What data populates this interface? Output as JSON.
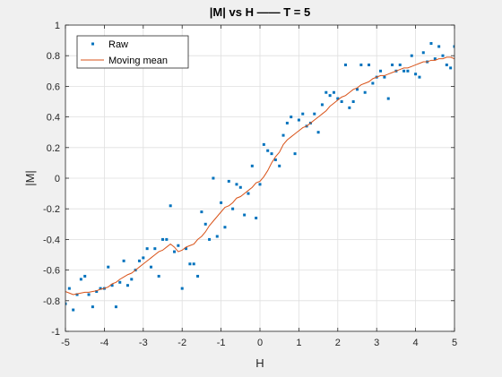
{
  "chart_data": {
    "type": "scatter",
    "title": "|M| vs H —— T = 5",
    "xlabel": "H",
    "ylabel": "|M|",
    "xlim": [
      -5,
      5
    ],
    "ylim": [
      -1,
      1
    ],
    "x_ticks": [
      "-5",
      "-4",
      "-3",
      "-2",
      "-1",
      "0",
      "1",
      "2",
      "3",
      "4",
      "5"
    ],
    "y_ticks": [
      "-1",
      "-0.8",
      "-0.6",
      "-0.4",
      "-0.2",
      "0",
      "0.2",
      "0.4",
      "0.6",
      "0.8",
      "1"
    ],
    "grid": true,
    "legend_position": "top-left",
    "colors": {
      "raw": "#0072bd",
      "moving_mean": "#d95319"
    },
    "series": [
      {
        "name": "Raw",
        "style": "markers",
        "points": [
          [
            -5.0,
            -0.82
          ],
          [
            -4.9,
            -0.72
          ],
          [
            -4.8,
            -0.86
          ],
          [
            -4.7,
            -0.76
          ],
          [
            -4.6,
            -0.66
          ],
          [
            -4.5,
            -0.64
          ],
          [
            -4.4,
            -0.76
          ],
          [
            -4.3,
            -0.84
          ],
          [
            -4.2,
            -0.74
          ],
          [
            -4.1,
            -0.72
          ],
          [
            -4.0,
            -0.72
          ],
          [
            -3.9,
            -0.58
          ],
          [
            -3.8,
            -0.7
          ],
          [
            -3.7,
            -0.84
          ],
          [
            -3.6,
            -0.68
          ],
          [
            -3.5,
            -0.54
          ],
          [
            -3.4,
            -0.7
          ],
          [
            -3.3,
            -0.66
          ],
          [
            -3.2,
            -0.6
          ],
          [
            -3.1,
            -0.54
          ],
          [
            -3.0,
            -0.52
          ],
          [
            -2.9,
            -0.46
          ],
          [
            -2.8,
            -0.58
          ],
          [
            -2.7,
            -0.46
          ],
          [
            -2.6,
            -0.64
          ],
          [
            -2.5,
            -0.4
          ],
          [
            -2.4,
            -0.4
          ],
          [
            -2.3,
            -0.18
          ],
          [
            -2.2,
            -0.48
          ],
          [
            -2.1,
            -0.44
          ],
          [
            -2.0,
            -0.72
          ],
          [
            -1.9,
            -0.46
          ],
          [
            -1.8,
            -0.56
          ],
          [
            -1.7,
            -0.56
          ],
          [
            -1.6,
            -0.64
          ],
          [
            -1.5,
            -0.22
          ],
          [
            -1.4,
            -0.3
          ],
          [
            -1.3,
            -0.4
          ],
          [
            -1.2,
            0.0
          ],
          [
            -1.1,
            -0.38
          ],
          [
            -1.0,
            -0.16
          ],
          [
            -0.9,
            -0.32
          ],
          [
            -0.8,
            -0.02
          ],
          [
            -0.7,
            -0.2
          ],
          [
            -0.6,
            -0.04
          ],
          [
            -0.5,
            -0.06
          ],
          [
            -0.4,
            -0.24
          ],
          [
            -0.3,
            -0.1
          ],
          [
            -0.2,
            0.08
          ],
          [
            -0.1,
            -0.26
          ],
          [
            0.0,
            -0.04
          ],
          [
            0.1,
            0.22
          ],
          [
            0.2,
            0.18
          ],
          [
            0.3,
            0.16
          ],
          [
            0.4,
            0.12
          ],
          [
            0.5,
            0.08
          ],
          [
            0.6,
            0.28
          ],
          [
            0.7,
            0.36
          ],
          [
            0.8,
            0.4
          ],
          [
            0.9,
            0.16
          ],
          [
            1.0,
            0.38
          ],
          [
            1.1,
            0.42
          ],
          [
            1.2,
            0.34
          ],
          [
            1.3,
            0.36
          ],
          [
            1.4,
            0.42
          ],
          [
            1.5,
            0.3
          ],
          [
            1.6,
            0.48
          ],
          [
            1.7,
            0.56
          ],
          [
            1.8,
            0.54
          ],
          [
            1.9,
            0.56
          ],
          [
            2.0,
            0.52
          ],
          [
            2.1,
            0.5
          ],
          [
            2.2,
            0.74
          ],
          [
            2.3,
            0.46
          ],
          [
            2.4,
            0.5
          ],
          [
            2.5,
            0.58
          ],
          [
            2.6,
            0.74
          ],
          [
            2.7,
            0.56
          ],
          [
            2.8,
            0.74
          ],
          [
            2.9,
            0.62
          ],
          [
            3.0,
            0.66
          ],
          [
            3.1,
            0.7
          ],
          [
            3.2,
            0.66
          ],
          [
            3.3,
            0.52
          ],
          [
            3.4,
            0.74
          ],
          [
            3.5,
            0.7
          ],
          [
            3.6,
            0.74
          ],
          [
            3.7,
            0.7
          ],
          [
            3.8,
            0.7
          ],
          [
            3.9,
            0.8
          ],
          [
            4.0,
            0.68
          ],
          [
            4.1,
            0.66
          ],
          [
            4.2,
            0.82
          ],
          [
            4.3,
            0.76
          ],
          [
            4.4,
            0.88
          ],
          [
            4.5,
            0.78
          ],
          [
            4.6,
            0.86
          ],
          [
            4.7,
            0.8
          ],
          [
            4.8,
            0.74
          ],
          [
            4.9,
            0.72
          ],
          [
            5.0,
            0.86
          ]
        ]
      },
      {
        "name": "Moving mean",
        "style": "line",
        "points": [
          [
            -5.0,
            -0.74
          ],
          [
            -4.9,
            -0.75
          ],
          [
            -4.8,
            -0.76
          ],
          [
            -4.7,
            -0.755
          ],
          [
            -4.6,
            -0.75
          ],
          [
            -4.5,
            -0.745
          ],
          [
            -4.4,
            -0.745
          ],
          [
            -4.3,
            -0.74
          ],
          [
            -4.2,
            -0.735
          ],
          [
            -4.1,
            -0.725
          ],
          [
            -4.0,
            -0.72
          ],
          [
            -3.9,
            -0.71
          ],
          [
            -3.8,
            -0.69
          ],
          [
            -3.7,
            -0.68
          ],
          [
            -3.6,
            -0.66
          ],
          [
            -3.5,
            -0.645
          ],
          [
            -3.4,
            -0.63
          ],
          [
            -3.3,
            -0.62
          ],
          [
            -3.2,
            -0.6
          ],
          [
            -3.1,
            -0.58
          ],
          [
            -3.0,
            -0.56
          ],
          [
            -2.9,
            -0.54
          ],
          [
            -2.8,
            -0.52
          ],
          [
            -2.7,
            -0.5
          ],
          [
            -2.6,
            -0.48
          ],
          [
            -2.5,
            -0.47
          ],
          [
            -2.4,
            -0.45
          ],
          [
            -2.3,
            -0.43
          ],
          [
            -2.2,
            -0.45
          ],
          [
            -2.1,
            -0.48
          ],
          [
            -2.0,
            -0.47
          ],
          [
            -1.9,
            -0.45
          ],
          [
            -1.8,
            -0.44
          ],
          [
            -1.7,
            -0.43
          ],
          [
            -1.6,
            -0.4
          ],
          [
            -1.5,
            -0.38
          ],
          [
            -1.4,
            -0.35
          ],
          [
            -1.3,
            -0.31
          ],
          [
            -1.2,
            -0.28
          ],
          [
            -1.1,
            -0.25
          ],
          [
            -1.0,
            -0.22
          ],
          [
            -0.9,
            -0.19
          ],
          [
            -0.8,
            -0.18
          ],
          [
            -0.7,
            -0.16
          ],
          [
            -0.6,
            -0.13
          ],
          [
            -0.5,
            -0.12
          ],
          [
            -0.4,
            -0.1
          ],
          [
            -0.3,
            -0.08
          ],
          [
            -0.2,
            -0.06
          ],
          [
            -0.1,
            -0.03
          ],
          [
            0.0,
            -0.02
          ],
          [
            0.1,
            0.01
          ],
          [
            0.2,
            0.05
          ],
          [
            0.3,
            0.1
          ],
          [
            0.4,
            0.14
          ],
          [
            0.5,
            0.17
          ],
          [
            0.6,
            0.22
          ],
          [
            0.7,
            0.25
          ],
          [
            0.8,
            0.27
          ],
          [
            0.9,
            0.29
          ],
          [
            1.0,
            0.31
          ],
          [
            1.1,
            0.33
          ],
          [
            1.2,
            0.34
          ],
          [
            1.3,
            0.36
          ],
          [
            1.4,
            0.38
          ],
          [
            1.5,
            0.4
          ],
          [
            1.6,
            0.42
          ],
          [
            1.7,
            0.44
          ],
          [
            1.8,
            0.47
          ],
          [
            1.9,
            0.49
          ],
          [
            2.0,
            0.51
          ],
          [
            2.1,
            0.53
          ],
          [
            2.2,
            0.54
          ],
          [
            2.3,
            0.56
          ],
          [
            2.4,
            0.58
          ],
          [
            2.5,
            0.59
          ],
          [
            2.6,
            0.61
          ],
          [
            2.7,
            0.62
          ],
          [
            2.8,
            0.63
          ],
          [
            2.9,
            0.65
          ],
          [
            3.0,
            0.66
          ],
          [
            3.1,
            0.67
          ],
          [
            3.2,
            0.67
          ],
          [
            3.3,
            0.68
          ],
          [
            3.4,
            0.69
          ],
          [
            3.5,
            0.7
          ],
          [
            3.6,
            0.71
          ],
          [
            3.7,
            0.72
          ],
          [
            3.8,
            0.72
          ],
          [
            3.9,
            0.73
          ],
          [
            4.0,
            0.74
          ],
          [
            4.1,
            0.75
          ],
          [
            4.2,
            0.76
          ],
          [
            4.3,
            0.76
          ],
          [
            4.4,
            0.77
          ],
          [
            4.5,
            0.77
          ],
          [
            4.6,
            0.78
          ],
          [
            4.7,
            0.78
          ],
          [
            4.8,
            0.79
          ],
          [
            4.9,
            0.79
          ],
          [
            5.0,
            0.78
          ]
        ]
      }
    ]
  }
}
